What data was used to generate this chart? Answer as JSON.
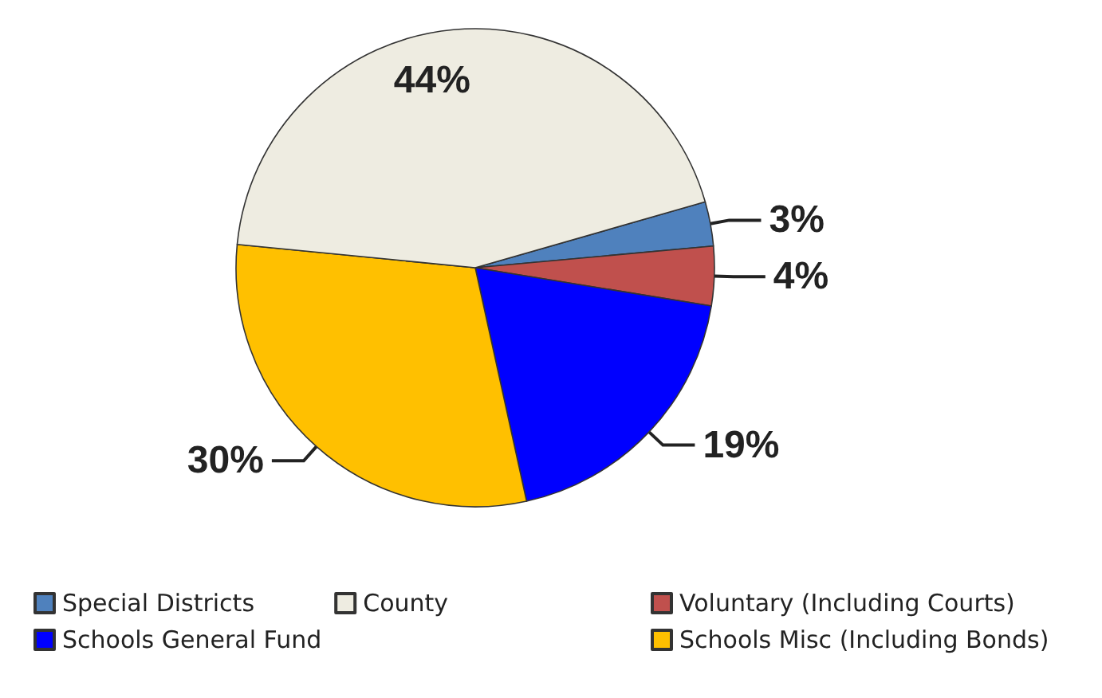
{
  "chart_data": {
    "type": "pie",
    "categories": [
      "Special Districts",
      "Voluntary (Including Courts)",
      "Schools General Fund",
      "Schools Misc (Including Bonds)",
      "County"
    ],
    "values": [
      3,
      4,
      19,
      30,
      44
    ],
    "colors": [
      "#4f81bd",
      "#c0504d",
      "#0000ff",
      "#ffc000",
      "#eeece1"
    ],
    "value_labels": [
      "3%",
      "4%",
      "19%",
      "30%",
      "44%"
    ],
    "legend": "bottom"
  }
}
